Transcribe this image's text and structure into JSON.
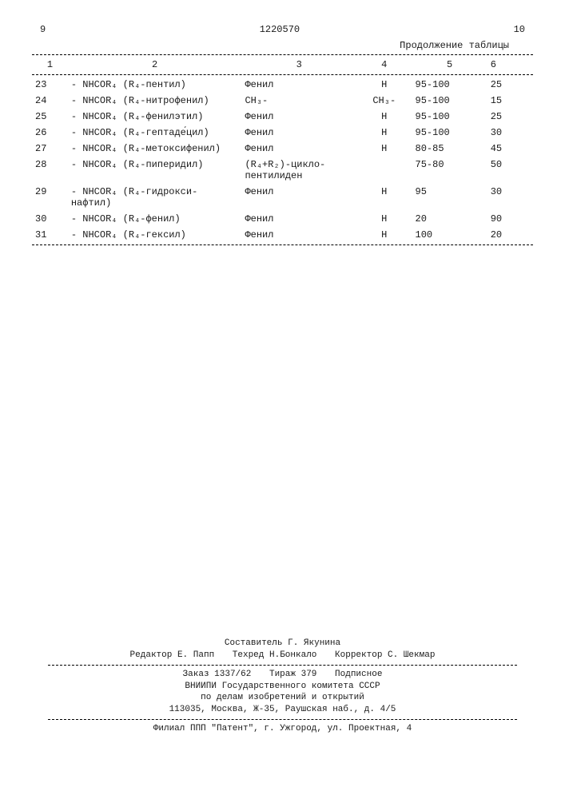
{
  "header": {
    "left_page": "9",
    "doc_number": "1220570",
    "right_page": "10",
    "continuation": "Продолжение таблицы"
  },
  "table": {
    "columns": [
      "1",
      "2",
      "3",
      "4",
      "5",
      "6"
    ],
    "rows": [
      {
        "n": "23",
        "c2": "- NHCOR₄ (R₄-пентил)",
        "c3": "Фенил",
        "c4": "H",
        "c5": "95-100",
        "c6": "25"
      },
      {
        "n": "24",
        "c2": "- NHCOR₄ (R₄-нитрофенил)",
        "c3": "CH₃-",
        "c4": "CH₃-",
        "c5": "95-100",
        "c6": "15"
      },
      {
        "n": "25",
        "c2": "- NHCOR₄ (R₄-фенилэтил)",
        "c3": "Фенил",
        "c4": "H",
        "c5": "95-100",
        "c6": "25"
      },
      {
        "n": "26",
        "c2": "- NHCOR₄ (R₄-гептаде́цил)",
        "c3": "Фенил",
        "c4": "H",
        "c5": "95-100",
        "c6": "30"
      },
      {
        "n": "27",
        "c2": "- NHCOR₄ (R₄-метоксифенил)",
        "c3": "Фенил",
        "c4": "H",
        "c5": "80-85",
        "c6": "45"
      },
      {
        "n": "28",
        "c2": "- NHCOR₄ (R₄-пиперидил)",
        "c3": "(R₄+R₂)-цикло-\nпентилиден",
        "c4": "",
        "c5": "75-80",
        "c6": "50"
      },
      {
        "n": "29",
        "c2": "- NHCOR₄ (R₄-гидрокси-\nнафтил)",
        "c3": "Фенил",
        "c4": "H",
        "c5": "95",
        "c6": "30"
      },
      {
        "n": "30",
        "c2": "- NHCOR₄ (R₄-фенил)",
        "c3": "Фенил",
        "c4": "H",
        "c5": "20",
        "c6": "90"
      },
      {
        "n": "31",
        "c2": "- NHCOR₄ (R₄-гексил)",
        "c3": "Фенил",
        "c4": "H",
        "c5": "100",
        "c6": "20"
      }
    ]
  },
  "footer": {
    "compiler_line": "Составитель Г. Якунина",
    "roles": {
      "editor": "Редактор Е. Папп",
      "techred": "Техред Н.Бонкало",
      "corrector": "Корректор С. Шекмар"
    },
    "line3_left": "Заказ 1337/62",
    "line3_mid": "Тираж 379",
    "line3_right": "Подписное",
    "line4": "ВНИИПИ Государственного комитета СССР",
    "line5": "по делам изобретений и открытий",
    "line6": "113035, Москва, Ж-35, Раушская наб., д. 4/5",
    "line7": "Филиал ППП \"Патент\", г. Ужгород, ул. Проектная, 4"
  }
}
